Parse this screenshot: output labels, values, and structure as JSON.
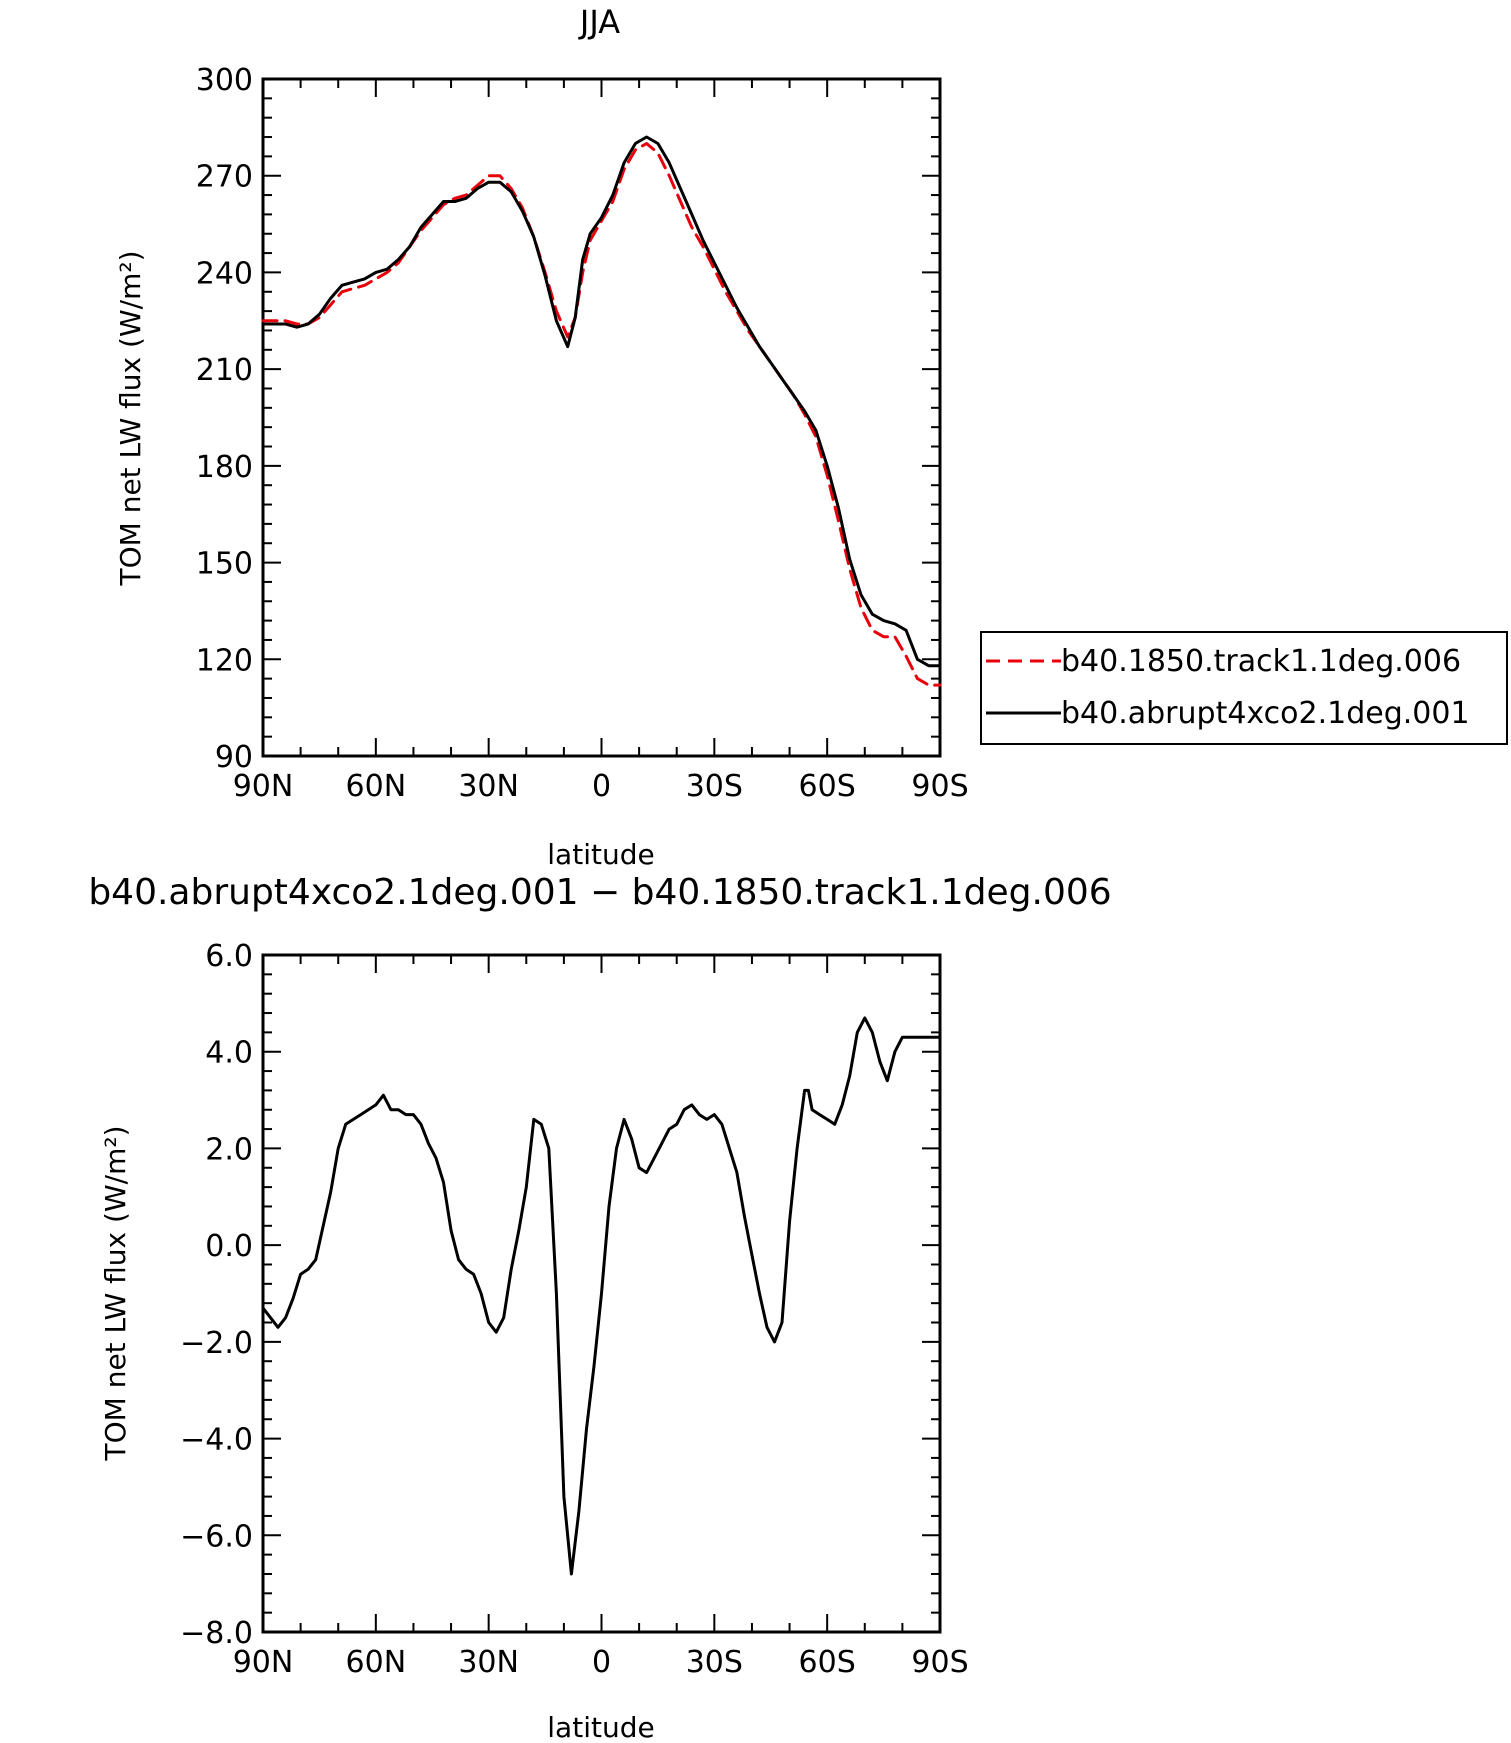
{
  "figure": {
    "top_title": "JJA",
    "bottom_title": "b40.abrupt4xco2.1deg.001 − b40.1850.track1.1deg.006"
  },
  "colors": {
    "control": "#e8000b",
    "experiment": "#000000",
    "axes": "#000000",
    "background": "#ffffff"
  },
  "chart_data": [
    {
      "type": "line",
      "title": "JJA",
      "xlabel": "latitude",
      "ylabel": "TOM net LW flux (W/m²)",
      "xlim": [
        90,
        -90
      ],
      "ylim": [
        90,
        300
      ],
      "x_ticks": [
        90,
        60,
        30,
        0,
        -30,
        -60,
        -90
      ],
      "x_tick_labels": [
        "90N",
        "60N",
        "30N",
        "0",
        "30S",
        "60S",
        "90S"
      ],
      "y_ticks": [
        90,
        120,
        150,
        180,
        210,
        240,
        270,
        300
      ],
      "y_tick_labels": [
        "90",
        "120",
        "150",
        "180",
        "210",
        "240",
        "270",
        "300"
      ],
      "grid": false,
      "legend_position": "right",
      "series": [
        {
          "name": "b40.1850.track1.1deg.006",
          "style": "dashed",
          "color": "#e8000b",
          "x": [
            90,
            87,
            84,
            81,
            78,
            75,
            72,
            69,
            66,
            63,
            60,
            57,
            54,
            51,
            48,
            45,
            42,
            39,
            36,
            33,
            30,
            27,
            24,
            21,
            18,
            15,
            12,
            9,
            7,
            5,
            3,
            0,
            -3,
            -6,
            -9,
            -12,
            -15,
            -18,
            -21,
            -24,
            -27,
            -30,
            -33,
            -36,
            -39,
            -42,
            -45,
            -48,
            -51,
            -54,
            -57,
            -60,
            -63,
            -66,
            -69,
            -72,
            -75,
            -78,
            -81,
            -84,
            -87,
            -90
          ],
          "y": [
            225,
            225,
            225,
            224,
            224,
            226,
            230,
            234,
            235,
            236,
            238,
            240,
            243,
            248,
            253,
            257,
            261,
            263,
            264,
            267,
            270,
            270,
            266,
            260,
            251,
            240,
            228,
            220,
            226,
            240,
            250,
            256,
            262,
            272,
            278,
            280,
            277,
            270,
            262,
            254,
            248,
            241,
            234,
            228,
            222,
            217,
            212,
            207,
            202,
            196,
            189,
            177,
            163,
            148,
            136,
            129,
            127,
            127,
            121,
            114,
            112,
            112
          ],
          "note_xs": []
        },
        {
          "name": "b40.abrupt4xco2.1deg.001",
          "style": "solid",
          "color": "#000000",
          "x": [
            90,
            87,
            84,
            81,
            78,
            75,
            72,
            69,
            66,
            63,
            60,
            57,
            54,
            51,
            48,
            45,
            42,
            39,
            36,
            33,
            30,
            27,
            24,
            21,
            18,
            15,
            12,
            9,
            7,
            5,
            3,
            0,
            -3,
            -6,
            -9,
            -12,
            -15,
            -18,
            -21,
            -24,
            -27,
            -30,
            -33,
            -36,
            -39,
            -42,
            -45,
            -48,
            -51,
            -54,
            -57,
            -60,
            -63,
            -66,
            -69,
            -72,
            -75,
            -78,
            -81,
            -84,
            -87,
            -90
          ],
          "y": [
            224,
            224,
            224,
            223,
            224,
            227,
            232,
            236,
            237,
            238,
            240,
            241,
            244,
            248,
            254,
            258,
            262,
            262,
            263,
            266,
            268,
            268,
            265,
            259,
            251,
            239,
            225,
            217,
            226,
            244,
            252,
            257,
            264,
            274,
            280,
            282,
            280,
            274,
            266,
            258,
            250,
            243,
            236,
            229,
            223,
            217,
            212,
            207,
            202,
            197,
            191,
            180,
            167,
            151,
            140,
            134,
            132,
            131,
            129,
            120,
            118,
            118
          ],
          "note_xs": []
        }
      ]
    },
    {
      "type": "line",
      "title": "b40.abrupt4xco2.1deg.001 − b40.1850.track1.1deg.006",
      "xlabel": "latitude",
      "ylabel": "TOM net LW flux (W/m²)",
      "xlim": [
        90,
        -90
      ],
      "ylim": [
        -8,
        6
      ],
      "x_ticks": [
        90,
        60,
        30,
        0,
        -30,
        -60,
        -90
      ],
      "x_tick_labels": [
        "90N",
        "60N",
        "30N",
        "0",
        "30S",
        "60S",
        "90S"
      ],
      "y_ticks": [
        -8,
        -6,
        -4,
        -2,
        0,
        2,
        4,
        6
      ],
      "y_tick_labels": [
        "−8.0",
        "−6.0",
        "−4.0",
        "−2.0",
        "0.0",
        "2.0",
        "4.0",
        "6.0"
      ],
      "grid": false,
      "series": [
        {
          "name": "",
          "style": "solid",
          "color": "#000000",
          "x": [
            90,
            88,
            86,
            84,
            82,
            80,
            78,
            76,
            74,
            72,
            70,
            68,
            66,
            64,
            62,
            60,
            58,
            56,
            54,
            52,
            50,
            48,
            46,
            44,
            42,
            40,
            38,
            36,
            34,
            32,
            30,
            28,
            26,
            24,
            22,
            20,
            18,
            16,
            14,
            12,
            10,
            8,
            6,
            4,
            2,
            0,
            -2,
            -4,
            -6,
            -8,
            -10,
            -12,
            -14,
            -16,
            -18,
            -20,
            -22,
            -24,
            -26,
            -28,
            -30,
            -32,
            -34,
            -36,
            -38,
            -40,
            -42,
            -44,
            -46,
            -48,
            -50,
            -52,
            -54,
            -55,
            -56,
            -58,
            -60,
            -62,
            -64,
            -66,
            -68,
            -70,
            -72,
            -74,
            -76,
            -78,
            -80,
            -82,
            -84,
            -86,
            -88,
            -90
          ],
          "y": [
            -1.3,
            -1.5,
            -1.7,
            -1.5,
            -1.1,
            -0.6,
            -0.5,
            -0.3,
            0.4,
            1.1,
            2.0,
            2.5,
            2.6,
            2.7,
            2.8,
            2.9,
            3.1,
            2.8,
            2.8,
            2.7,
            2.7,
            2.5,
            2.1,
            1.8,
            1.3,
            0.3,
            -0.3,
            -0.5,
            -0.6,
            -1.0,
            -1.6,
            -1.8,
            -1.5,
            -0.5,
            0.3,
            1.2,
            2.6,
            2.5,
            2.0,
            -1.0,
            -5.2,
            -6.8,
            -5.5,
            -3.8,
            -2.5,
            -1.0,
            0.8,
            2.0,
            2.6,
            2.2,
            1.6,
            1.5,
            1.8,
            2.1,
            2.4,
            2.5,
            2.8,
            2.9,
            2.7,
            2.6,
            2.7,
            2.5,
            2.0,
            1.5,
            0.6,
            -0.2,
            -1.0,
            -1.7,
            -2.0,
            -1.6,
            0.5,
            2.0,
            3.2,
            3.2,
            2.8,
            2.7,
            2.6,
            2.5,
            2.9,
            3.5,
            4.4,
            4.7,
            4.4,
            3.8,
            3.4,
            4.0,
            4.3,
            4.3,
            4.3,
            4.3,
            4.3,
            4.3
          ],
          "note_xs": []
        }
      ]
    }
  ]
}
